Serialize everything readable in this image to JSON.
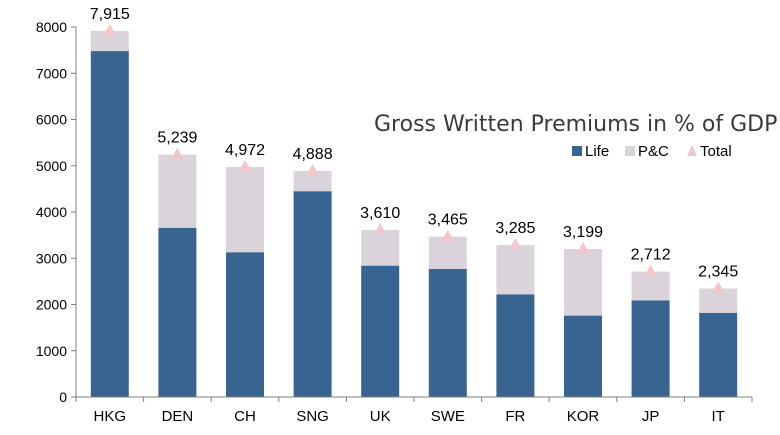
{
  "chart_data": {
    "type": "bar",
    "stacked": true,
    "title": "Gross Written Premiums in % of GDP",
    "xlabel": "",
    "ylabel": "",
    "ylim": [
      0,
      8000
    ],
    "yticks": [
      0,
      1000,
      2000,
      3000,
      4000,
      5000,
      6000,
      7000,
      8000
    ],
    "grid": false,
    "legend_position": "right",
    "categories": [
      "HKG",
      "DEN",
      "CH",
      "SNG",
      "UK",
      "SWE",
      "FR",
      "KOR",
      "JP",
      "IT"
    ],
    "series": [
      {
        "name": "Life",
        "values": [
          7480,
          3660,
          3130,
          4450,
          2840,
          2770,
          2220,
          1760,
          2090,
          1820
        ]
      },
      {
        "name": "P&C",
        "values": [
          435,
          1579,
          1842,
          438,
          770,
          695,
          1065,
          1439,
          622,
          525
        ]
      }
    ],
    "total": {
      "name": "Total",
      "values": [
        7915,
        5239,
        4972,
        4888,
        3610,
        3465,
        3285,
        3199,
        2712,
        2345
      ],
      "labels": [
        "7,915",
        "5,239",
        "4,972",
        "4,888",
        "3,610",
        "3,465",
        "3,285",
        "3,199",
        "2,712",
        "2,345"
      ]
    },
    "colors": {
      "Life": "#386491",
      "P&C": "#dbd3dc",
      "Total": "#f2c6cb",
      "axis": "#808080"
    }
  }
}
